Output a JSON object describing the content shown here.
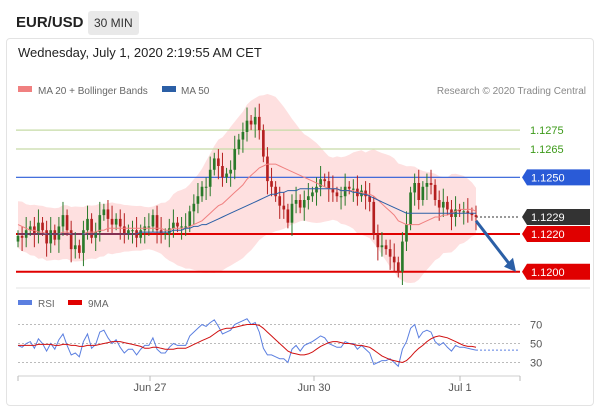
{
  "header": {
    "symbol": "EUR/USD",
    "timeframe": "30 MIN"
  },
  "datetime": "Wednesday, July 1, 2020 2:19:55 AM CET",
  "legend": {
    "ma20": "MA 20 + Bollinger Bands",
    "ma50": "MA 50",
    "rsi": "RSI",
    "ma9": "9MA"
  },
  "credit": "Research © 2020 Trading Central",
  "colors": {
    "ma20": "#f08080",
    "ma50": "#2b5fa6",
    "bollinger": "#fdd6d6",
    "up": "#2a7a2a",
    "down": "#b52020",
    "support": "#e00000",
    "resistance_green": "#c6dba6",
    "resistance_blue": "#2a5bd7",
    "current": "#333333",
    "arrow": "#2b5fa6",
    "rsi": "#5b7fe0"
  },
  "chart_data": [
    {
      "type": "candlestick",
      "x_ticks": [
        "Jun 27",
        "Jun 30",
        "Jul 1"
      ],
      "ylim": [
        1.1193,
        1.1292
      ],
      "levels": [
        {
          "label": "1.1275",
          "value": 1.1275,
          "kind": "resistance-minor"
        },
        {
          "label": "1.1265",
          "value": 1.1265,
          "kind": "resistance-minor"
        },
        {
          "label": "1.1250",
          "value": 1.125,
          "kind": "resistance"
        },
        {
          "label": "1.1229",
          "value": 1.1229,
          "kind": "current"
        },
        {
          "label": "1.1220",
          "value": 1.122,
          "kind": "support"
        },
        {
          "label": "1.1200",
          "value": 1.12,
          "kind": "support"
        }
      ],
      "forecast": {
        "from": 1.1227,
        "to": 1.12,
        "direction": "down"
      },
      "close": [
        1.1219,
        1.1218,
        1.1222,
        1.1224,
        1.122,
        1.1226,
        1.1222,
        1.1215,
        1.1222,
        1.1217,
        1.1224,
        1.123,
        1.1222,
        1.1212,
        1.1214,
        1.121,
        1.1222,
        1.1228,
        1.1218,
        1.1221,
        1.123,
        1.1233,
        1.1228,
        1.1225,
        1.1228,
        1.1224,
        1.122,
        1.1222,
        1.1222,
        1.1218,
        1.1222,
        1.1224,
        1.1224,
        1.123,
        1.1222,
        1.122,
        1.122,
        1.1223,
        1.1226,
        1.1224,
        1.1224,
        1.1224,
        1.1232,
        1.1236,
        1.124,
        1.1245,
        1.1245,
        1.1254,
        1.126,
        1.1256,
        1.125,
        1.1252,
        1.1254,
        1.1265,
        1.127,
        1.1274,
        1.128,
        1.1278,
        1.1282,
        1.1275,
        1.1261,
        1.1248,
        1.1245,
        1.124,
        1.1235,
        1.1233,
        1.1226,
        1.1236,
        1.1238,
        1.1234,
        1.1238,
        1.124,
        1.1242,
        1.1245,
        1.1249,
        1.1248,
        1.1244,
        1.1242,
        1.124,
        1.124,
        1.1245,
        1.1244,
        1.1244,
        1.124,
        1.1243,
        1.124,
        1.1237,
        1.122,
        1.1213,
        1.1214,
        1.1212,
        1.1208,
        1.1205,
        1.12,
        1.1216,
        1.1225,
        1.1242,
        1.1247,
        1.1238,
        1.1245,
        1.1247,
        1.1246,
        1.1238,
        1.1234,
        1.1237,
        1.1233,
        1.1229,
        1.1233,
        1.1232,
        1.1232,
        1.1231,
        1.123,
        1.1229
      ],
      "ma20": [
        1.1225,
        1.1224,
        1.1223,
        1.1222,
        1.1222,
        1.1221,
        1.1221,
        1.122,
        1.122,
        1.122,
        1.122,
        1.1221,
        1.1221,
        1.122,
        1.122,
        1.122,
        1.122,
        1.1221,
        1.1221,
        1.1221,
        1.1222,
        1.1222,
        1.1223,
        1.1223,
        1.1223,
        1.1223,
        1.1223,
        1.1223,
        1.1223,
        1.1223,
        1.1223,
        1.1223,
        1.1223,
        1.1223,
        1.1223,
        1.1223,
        1.1222,
        1.1222,
        1.1223,
        1.1223,
        1.1223,
        1.1223,
        1.1224,
        1.1225,
        1.1226,
        1.1227,
        1.1229,
        1.1231,
        1.1233,
        1.1235,
        1.1236,
        1.1238,
        1.124,
        1.1242,
        1.1244,
        1.1246,
        1.1249,
        1.1251,
        1.1253,
        1.1255,
        1.1256,
        1.1257,
        1.1257,
        1.1257,
        1.1256,
        1.1255,
        1.1254,
        1.1253,
        1.1252,
        1.1251,
        1.125,
        1.1249,
        1.1248,
        1.1247,
        1.1246,
        1.1245,
        1.1244,
        1.1244,
        1.1244,
        1.1243,
        1.1243,
        1.1243,
        1.1243,
        1.1242,
        1.1242,
        1.1241,
        1.1241,
        1.124,
        1.1238,
        1.1236,
        1.1234,
        1.1232,
        1.123,
        1.1227,
        1.1226,
        1.1225,
        1.1225,
        1.1225,
        1.1225,
        1.1226,
        1.1227,
        1.1228,
        1.1229,
        1.1229,
        1.123,
        1.123,
        1.1231,
        1.1232,
        1.1233,
        1.1233,
        1.1233,
        1.1233,
        1.1232
      ],
      "ma50": [
        1.122,
        1.122,
        1.122,
        1.122,
        1.122,
        1.122,
        1.122,
        1.122,
        1.122,
        1.122,
        1.122,
        1.122,
        1.122,
        1.122,
        1.122,
        1.122,
        1.122,
        1.122,
        1.122,
        1.122,
        1.122,
        1.122,
        1.122,
        1.122,
        1.122,
        1.122,
        1.122,
        1.122,
        1.122,
        1.122,
        1.1221,
        1.1221,
        1.1221,
        1.1221,
        1.1221,
        1.1221,
        1.1221,
        1.1221,
        1.1222,
        1.1222,
        1.1222,
        1.1223,
        1.1223,
        1.1224,
        1.1224,
        1.1225,
        1.1225,
        1.1226,
        1.1227,
        1.1228,
        1.1229,
        1.123,
        1.1231,
        1.1232,
        1.1233,
        1.1234,
        1.1235,
        1.1236,
        1.1237,
        1.1238,
        1.1239,
        1.124,
        1.1241,
        1.1241,
        1.1242,
        1.1242,
        1.1243,
        1.1243,
        1.1243,
        1.1244,
        1.1244,
        1.1244,
        1.1244,
        1.1244,
        1.1244,
        1.1244,
        1.1244,
        1.1244,
        1.1244,
        1.1243,
        1.1243,
        1.1243,
        1.1242,
        1.1242,
        1.1241,
        1.1241,
        1.124,
        1.1239,
        1.1238,
        1.1237,
        1.1236,
        1.1235,
        1.1234,
        1.1233,
        1.1232,
        1.1231,
        1.1231,
        1.1231,
        1.1231,
        1.1231,
        1.1231,
        1.1231,
        1.1231,
        1.1231,
        1.1231,
        1.1231,
        1.1231,
        1.1231,
        1.1231,
        1.1231,
        1.1231,
        1.1231,
        1.1231
      ]
    },
    {
      "type": "line",
      "ylim": [
        20,
        80
      ],
      "y_ticks": [
        "70",
        "50",
        "30"
      ],
      "series": [
        {
          "name": "RSI",
          "values": [
            48,
            46,
            50,
            52,
            45,
            55,
            50,
            42,
            50,
            44,
            54,
            60,
            48,
            38,
            40,
            36,
            52,
            60,
            45,
            49,
            62,
            64,
            56,
            50,
            54,
            46,
            40,
            44,
            44,
            38,
            44,
            48,
            48,
            56,
            44,
            40,
            40,
            46,
            50,
            48,
            48,
            48,
            58,
            62,
            66,
            70,
            68,
            72,
            75,
            68,
            60,
            62,
            64,
            70,
            72,
            74,
            76,
            70,
            72,
            62,
            45,
            38,
            38,
            36,
            34,
            34,
            30,
            44,
            48,
            42,
            48,
            50,
            52,
            55,
            58,
            56,
            50,
            48,
            46,
            46,
            52,
            50,
            50,
            44,
            48,
            44,
            40,
            28,
            30,
            32,
            32,
            34,
            30,
            26,
            44,
            52,
            66,
            70,
            56,
            62,
            64,
            62,
            52,
            48,
            51,
            46,
            42,
            48,
            46,
            46,
            45,
            44,
            43
          ]
        },
        {
          "name": "9MA",
          "values": [
            48,
            48,
            48,
            48,
            48,
            49,
            49,
            49,
            49,
            48,
            48,
            49,
            49,
            48,
            48,
            47,
            47,
            48,
            48,
            48,
            49,
            50,
            51,
            52,
            52,
            52,
            51,
            50,
            49,
            48,
            47,
            45,
            45,
            46,
            46,
            45,
            44,
            44,
            44,
            45,
            45,
            45,
            47,
            49,
            51,
            53,
            55,
            57,
            60,
            63,
            65,
            66,
            66,
            67,
            68,
            69,
            70,
            70,
            70,
            69,
            66,
            62,
            58,
            54,
            50,
            46,
            42,
            40,
            39,
            38,
            38,
            39,
            41,
            44,
            47,
            49,
            51,
            52,
            52,
            51,
            50,
            50,
            49,
            48,
            48,
            47,
            46,
            43,
            40,
            37,
            35,
            33,
            32,
            31,
            30,
            32,
            36,
            41,
            45,
            48,
            52,
            55,
            57,
            58,
            57,
            56,
            54,
            52,
            50,
            48,
            47,
            47,
            46
          ]
        }
      ]
    }
  ]
}
